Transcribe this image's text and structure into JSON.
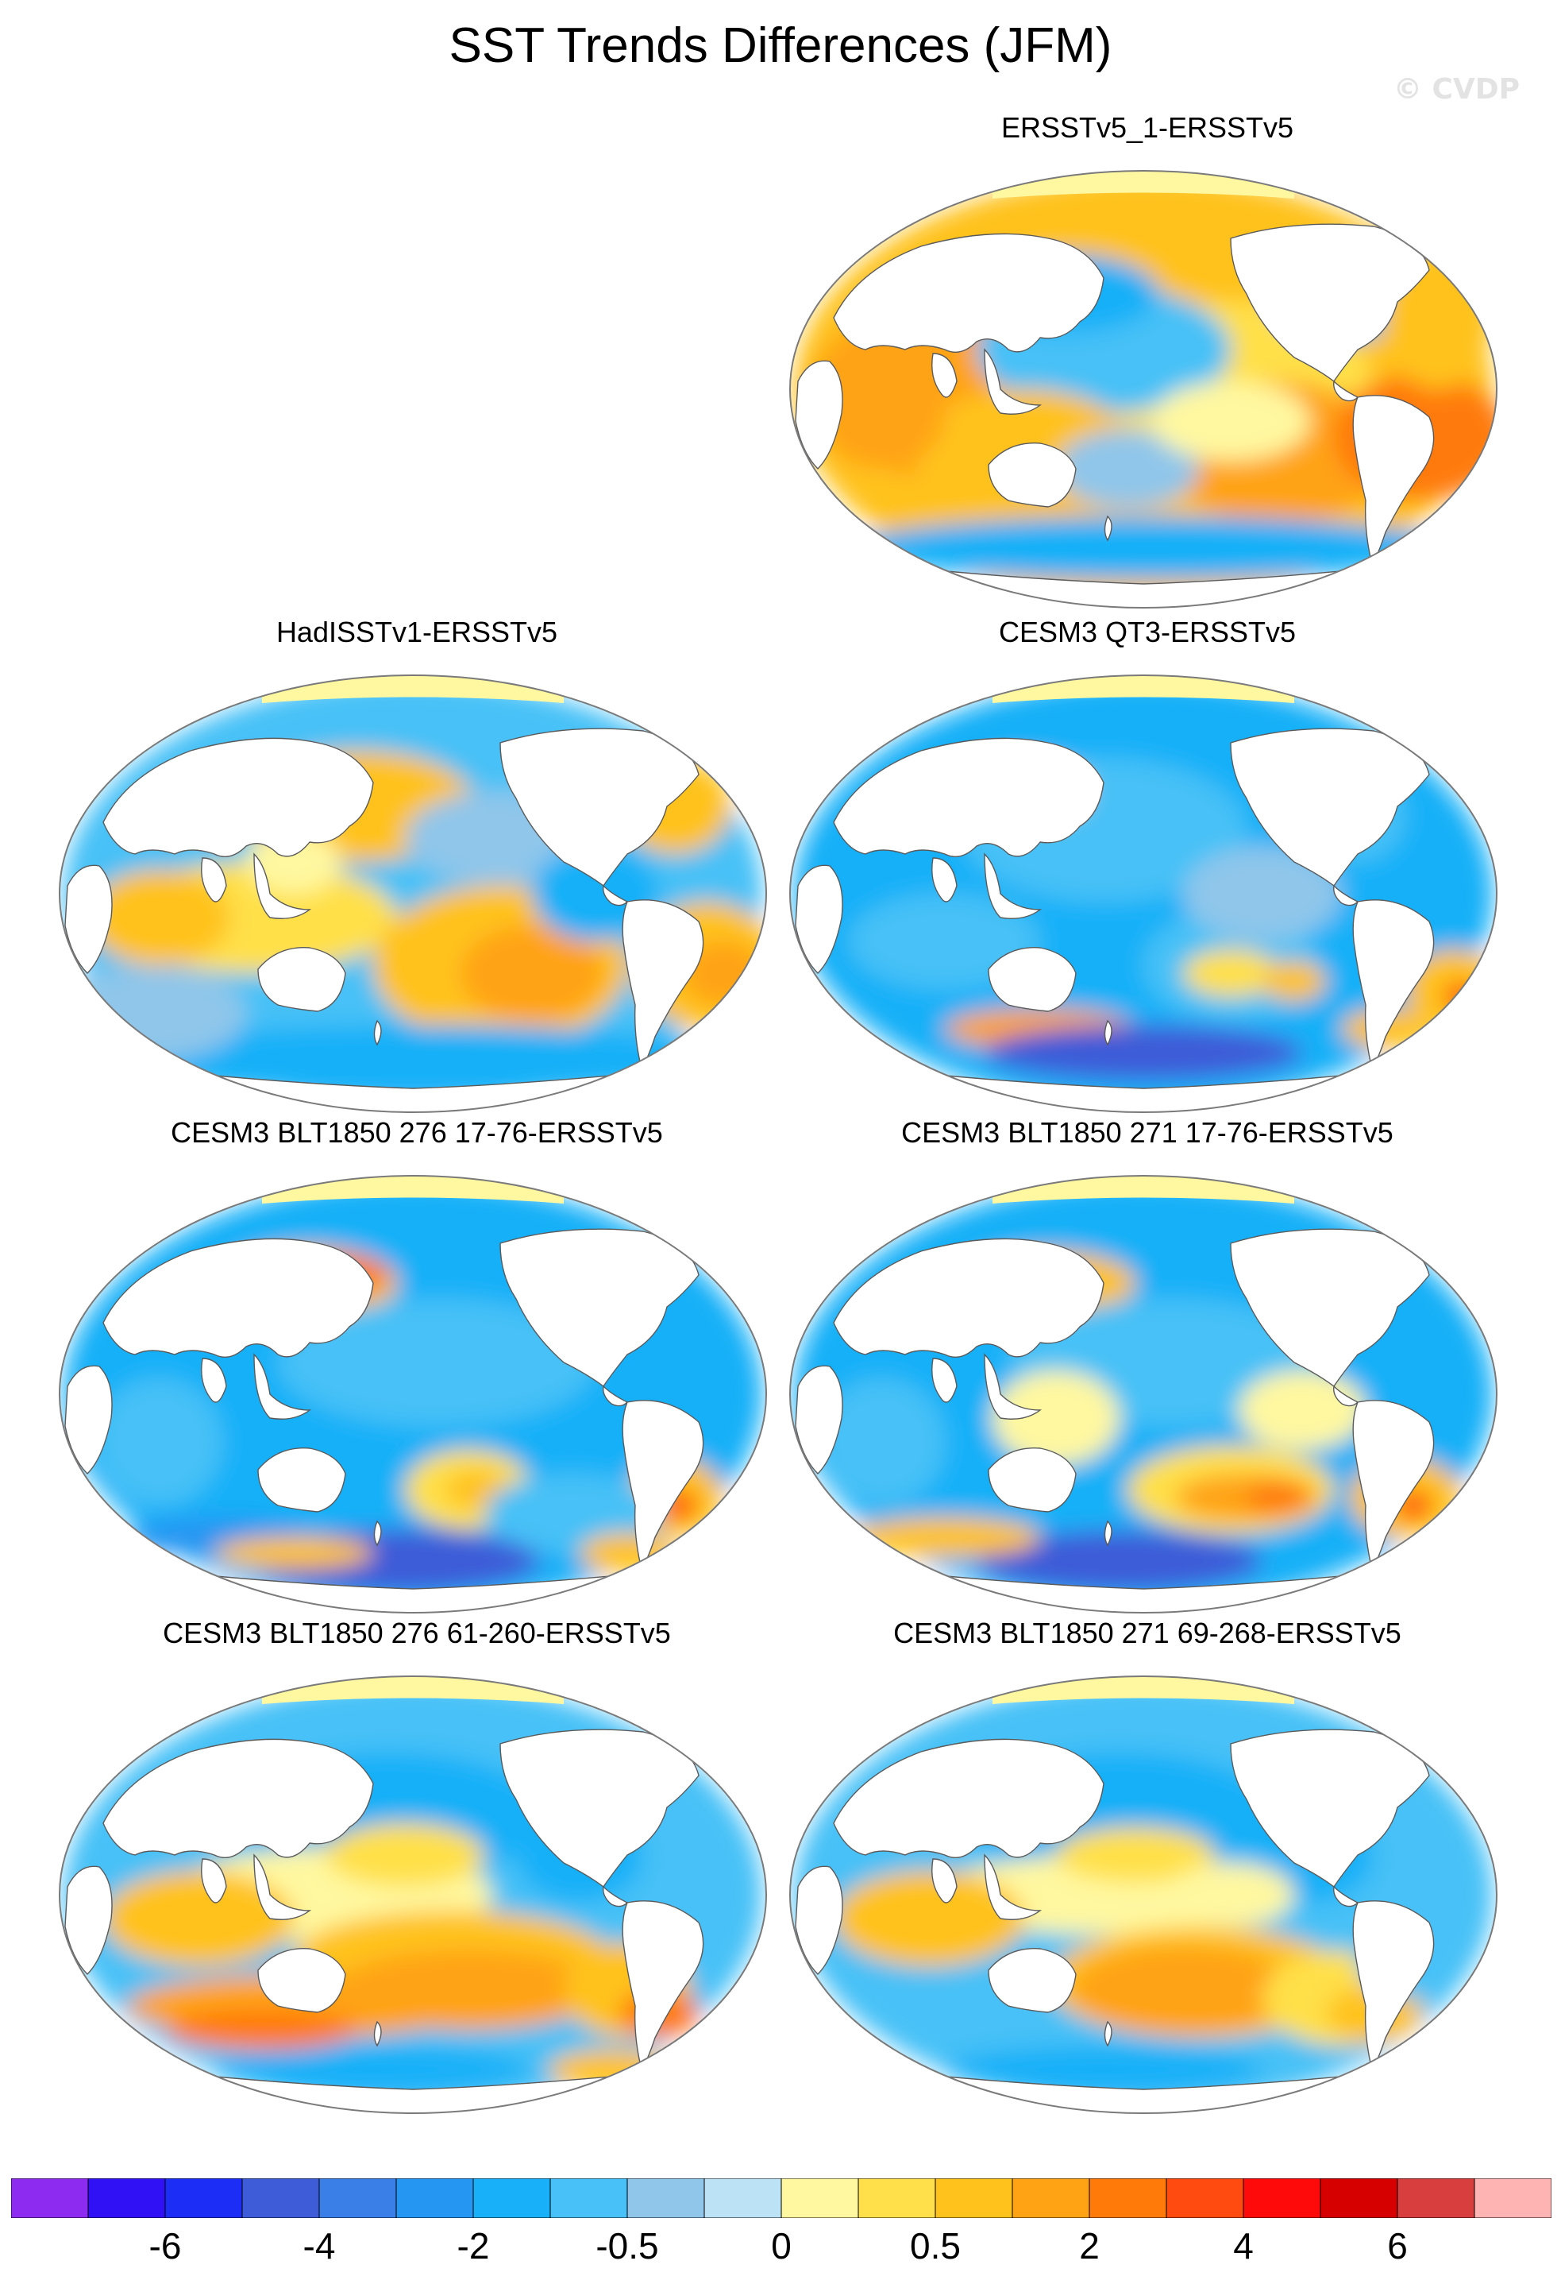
{
  "title": "SST Trends Differences (JFM)",
  "watermark": "© CVDP",
  "panels": [
    {
      "id": "p1",
      "title": "ERSSTv5_1-ERSSTv5",
      "dominant": "warm",
      "pattern": 1
    },
    {
      "id": "p2",
      "title": "HadISSTv1-ERSSTv5",
      "dominant": "mixed-warm",
      "pattern": 2
    },
    {
      "id": "p3",
      "title": "CESM3 QT3-ERSSTv5",
      "dominant": "cool",
      "pattern": 3
    },
    {
      "id": "p4",
      "title": "CESM3 BLT1850 276 17-76-ERSSTv5",
      "dominant": "cool",
      "pattern": 4
    },
    {
      "id": "p5",
      "title": "CESM3 BLT1850 271 17-76-ERSSTv5",
      "dominant": "cool",
      "pattern": 5
    },
    {
      "id": "p6",
      "title": "CESM3 BLT1850 276 61-260-ERSSTv5",
      "dominant": "mixed-warm-south",
      "pattern": 6
    },
    {
      "id": "p7",
      "title": "CESM3 BLT1850 271 69-268-ERSSTv5",
      "dominant": "mixed-warm-south",
      "pattern": 7
    }
  ],
  "colorbar": {
    "colors": [
      "#8d2cf0",
      "#3010f5",
      "#1c2ef5",
      "#3e5bd8",
      "#3a7ee8",
      "#2596f2",
      "#18b0f8",
      "#47c1f7",
      "#8fc6ea",
      "#bce2f5",
      "#fff8a0",
      "#ffe04a",
      "#ffc21c",
      "#ffa314",
      "#ff7a08",
      "#ff4a10",
      "#ff0a0a",
      "#d60000",
      "#d83e3e",
      "#ffb4b4"
    ],
    "labels": [
      {
        "text": "-6",
        "boundary": 2
      },
      {
        "text": "-4",
        "boundary": 4
      },
      {
        "text": "-2",
        "boundary": 6
      },
      {
        "text": "-0.5",
        "boundary": 8
      },
      {
        "text": "0",
        "boundary": 10
      },
      {
        "text": "0.5",
        "boundary": 12
      },
      {
        "text": "2",
        "boundary": 14
      },
      {
        "text": "4",
        "boundary": 16
      },
      {
        "text": "6",
        "boundary": 18
      }
    ]
  }
}
